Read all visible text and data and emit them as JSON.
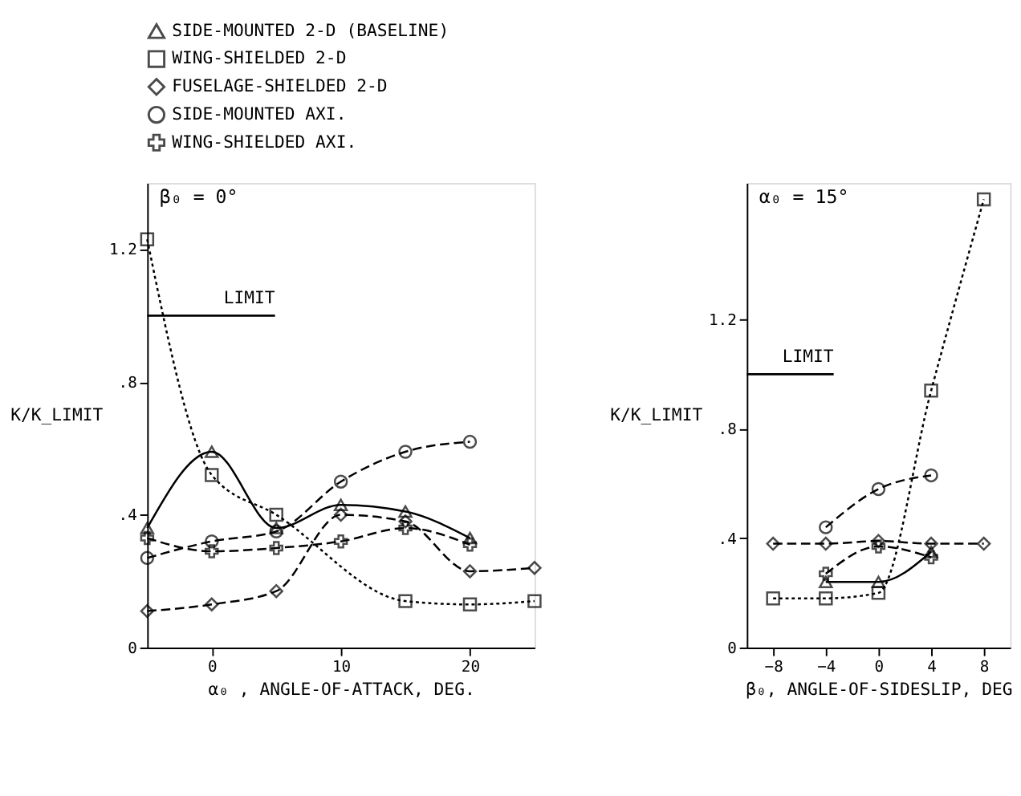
{
  "chart_data": [
    {
      "type": "line",
      "xlabel": "α₀ , ANGLE-OF-ATTACK, DEG.",
      "ylabel": "K/K_LIMIT",
      "annotations": [
        "β₀ = 0°"
      ],
      "x": [
        -5,
        0,
        5,
        10,
        15,
        20,
        25
      ],
      "xlim": [
        -5,
        25
      ],
      "xticks": [
        0,
        10,
        20
      ],
      "ylim": [
        0,
        1.4
      ],
      "yticks": [
        {
          "value": 0,
          "label": "0"
        },
        {
          "value": 0.4,
          "label": ".4"
        },
        {
          "value": 0.8,
          "label": ".8"
        },
        1.2
      ],
      "grid": false,
      "legend": "top",
      "ref_lines": [
        {
          "axis": "y",
          "value": 1.0,
          "label": "LIMIT"
        }
      ],
      "series": [
        {
          "name": "SIDE-MOUNTED 2-D (BASELINE)",
          "color": "#000000",
          "marker": "triangle",
          "line_style": "solid",
          "values": [
            0.36,
            0.59,
            0.36,
            0.43,
            0.41,
            0.33,
            null
          ]
        },
        {
          "name": "WING-SHIELDED 2-D",
          "color": "#000000",
          "marker": "square",
          "line_style": "dotted",
          "values": [
            1.23,
            0.52,
            0.4,
            null,
            0.14,
            0.13,
            0.14
          ]
        },
        {
          "name": "FUSELAGE-SHIELDED 2-D",
          "color": "#000000",
          "marker": "diamond",
          "line_style": "dashed",
          "values": [
            0.11,
            0.13,
            0.17,
            0.4,
            0.38,
            0.23,
            0.24
          ]
        },
        {
          "name": "SIDE-MOUNTED AXI.",
          "color": "#000000",
          "marker": "circle",
          "line_style": "dashed",
          "values": [
            0.27,
            0.32,
            0.35,
            0.5,
            0.59,
            0.62,
            null
          ]
        },
        {
          "name": "WING-SHIELDED AXI.",
          "color": "#000000",
          "marker": "cross",
          "line_style": "dashed",
          "values": [
            0.33,
            0.29,
            0.3,
            0.32,
            0.36,
            0.31,
            null
          ]
        }
      ]
    },
    {
      "type": "line",
      "xlabel": "β₀, ANGLE-OF-SIDESLIP, DEG",
      "ylabel": "K/K_LIMIT",
      "annotations": [
        "α₀ = 15°"
      ],
      "x": [
        -8,
        -4,
        0,
        4,
        8
      ],
      "xlim": [
        -10,
        10
      ],
      "xticks": [
        -8,
        -4,
        0,
        4,
        8
      ],
      "ylim": [
        0,
        1.7
      ],
      "yticks": [
        {
          "value": 0,
          "label": "0"
        },
        {
          "value": 0.4,
          "label": ".4"
        },
        {
          "value": 0.8,
          "label": ".8"
        },
        1.2
      ],
      "grid": false,
      "ref_lines": [
        {
          "axis": "y",
          "value": 1.0,
          "label": "LIMIT"
        }
      ],
      "series": [
        {
          "color": "#000000",
          "marker": "triangle",
          "line_style": "solid",
          "values": [
            null,
            0.24,
            0.24,
            0.35,
            null
          ]
        },
        {
          "color": "#000000",
          "marker": "square",
          "line_style": "dotted",
          "values": [
            0.18,
            0.18,
            0.2,
            0.94,
            1.64
          ]
        },
        {
          "color": "#000000",
          "marker": "diamond",
          "line_style": "dashed",
          "values": [
            0.38,
            0.38,
            0.39,
            0.38,
            0.38
          ]
        },
        {
          "color": "#000000",
          "marker": "circle",
          "line_style": "dashed",
          "values": [
            null,
            0.44,
            0.58,
            0.63,
            null
          ]
        },
        {
          "color": "#000000",
          "marker": "cross",
          "line_style": "dashed",
          "values": [
            null,
            0.27,
            0.37,
            0.33,
            null
          ]
        }
      ]
    }
  ]
}
